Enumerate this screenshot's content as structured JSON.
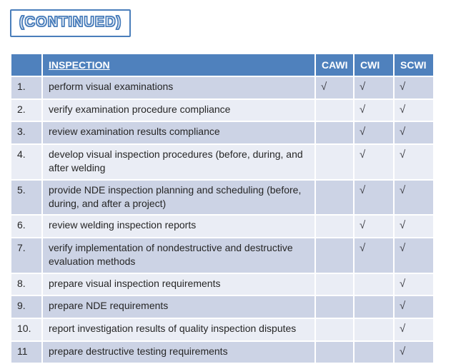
{
  "slide": {
    "title": "(CONTINUED)"
  },
  "table": {
    "headers": {
      "number": "",
      "inspection": "INSPECTION",
      "cawi": "CAWI",
      "cwi": "CWI",
      "scwi": "SCWI"
    },
    "check_glyph": "√",
    "rows": [
      {
        "num": "1.",
        "task": "perform visual examinations",
        "cawi": true,
        "cwi": true,
        "scwi": true
      },
      {
        "num": "2.",
        "task": "verify examination procedure compliance",
        "cawi": false,
        "cwi": true,
        "scwi": true
      },
      {
        "num": "3.",
        "task": "review examination results compliance",
        "cawi": false,
        "cwi": true,
        "scwi": true
      },
      {
        "num": "4.",
        "task": "develop visual inspection procedures (before, during, and after welding",
        "cawi": false,
        "cwi": true,
        "scwi": true
      },
      {
        "num": "5.",
        "task": "provide NDE inspection planning and scheduling (before, during, and after a project)",
        "cawi": false,
        "cwi": true,
        "scwi": true
      },
      {
        "num": "6.",
        "task": "review welding inspection reports",
        "cawi": false,
        "cwi": true,
        "scwi": true
      },
      {
        "num": "7.",
        "task": "verify implementation of nondestructive and destructive evaluation methods",
        "cawi": false,
        "cwi": true,
        "scwi": true
      },
      {
        "num": "8.",
        "task": "prepare visual inspection requirements",
        "cawi": false,
        "cwi": false,
        "scwi": true
      },
      {
        "num": "9.",
        "task": "prepare NDE requirements",
        "cawi": false,
        "cwi": false,
        "scwi": true
      },
      {
        "num": "10.",
        "task": "report investigation results of quality inspection disputes",
        "cawi": false,
        "cwi": false,
        "scwi": true
      },
      {
        "num": "11",
        "task": "prepare destructive testing requirements",
        "cawi": false,
        "cwi": false,
        "scwi": true
      }
    ]
  },
  "colors": {
    "header_bg": "#4f81bd",
    "band_dark": "#ccd3e5",
    "band_light": "#eaedf5",
    "title_border": "#4a7ebb",
    "check_color": "#3f3f46",
    "body_text": "#262626"
  }
}
